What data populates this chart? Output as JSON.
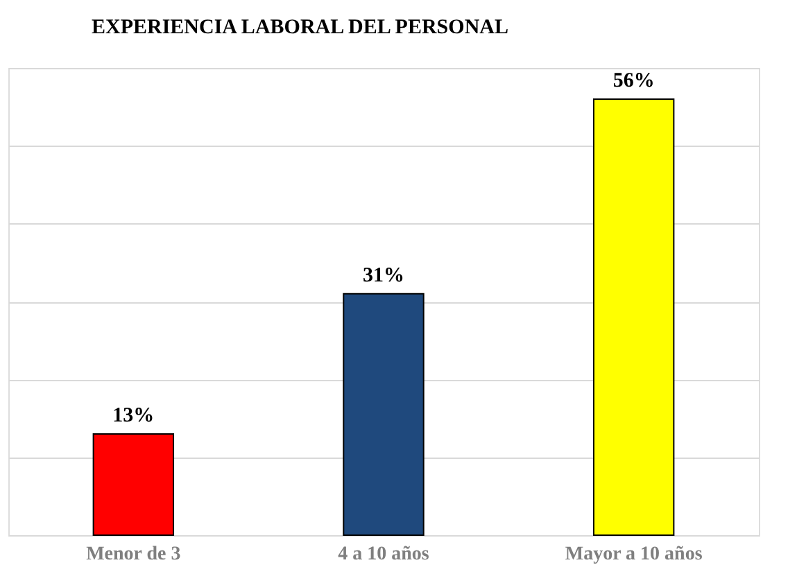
{
  "chart_data": {
    "type": "bar",
    "title": "EXPERIENCIA LABORAL DEL PERSONAL",
    "categories": [
      "Menor de 3",
      "4 a 10 años",
      "Mayor a 10 años"
    ],
    "values": [
      13,
      31,
      56
    ],
    "colors": [
      "#ff0000",
      "#1f497d",
      "#ffff00"
    ],
    "value_labels": [
      "13%",
      "31%",
      "56%"
    ],
    "ylim": [
      0,
      60
    ],
    "yticks": [
      {
        "value": 0,
        "label": null
      },
      {
        "value": 10,
        "label": null
      },
      {
        "value": 20,
        "label": null
      },
      {
        "value": 30,
        "label": null
      },
      {
        "value": 40,
        "label": null
      },
      {
        "value": 50,
        "label": null
      },
      {
        "value": 60,
        "label": null
      }
    ],
    "grid": "y",
    "tick_labels": "x"
  }
}
